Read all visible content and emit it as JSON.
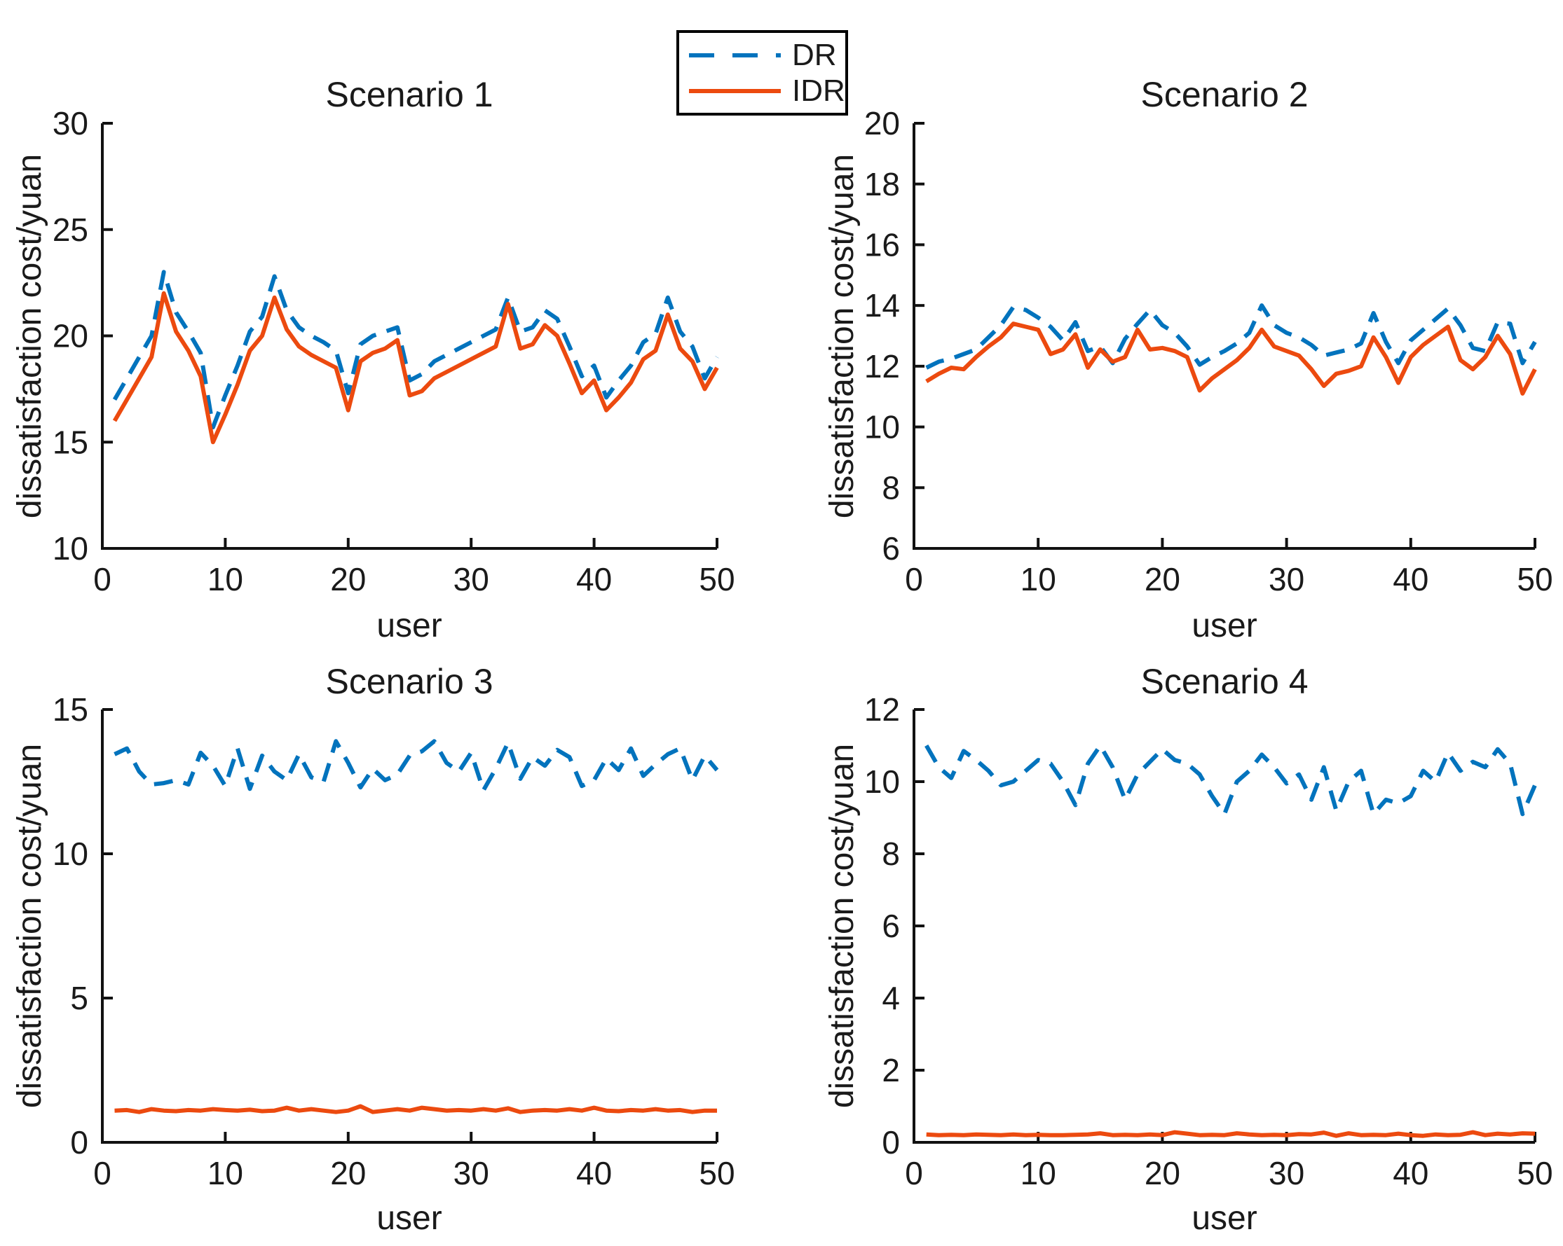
{
  "figure": {
    "background": "#ffffff",
    "axis_color": "#111111",
    "legend": {
      "items": [
        {
          "label": "DR",
          "color": "#0273BD",
          "style": "dashed"
        },
        {
          "label": "IDR",
          "color": "#EC4A0F",
          "style": "solid"
        }
      ]
    }
  },
  "chart_data": [
    {
      "type": "line",
      "title": "Scenario 1",
      "xlabel": "user",
      "ylabel": "dissatisfaction cost/yuan",
      "xlim": [
        0,
        50
      ],
      "ylim": [
        10,
        30
      ],
      "xticks": [
        0,
        10,
        20,
        30,
        40,
        50
      ],
      "yticks": [
        10,
        15,
        20,
        25,
        30
      ],
      "grid": false,
      "x_range": [
        1,
        50
      ],
      "series": [
        {
          "name": "DR",
          "style": "dashed",
          "color": "#0273BD",
          "values": [
            17.0,
            18.0,
            19.0,
            20.0,
            23.0,
            21.1,
            20.2,
            19.2,
            15.7,
            17.2,
            18.6,
            20.2,
            20.9,
            22.8,
            21.2,
            20.4,
            20.0,
            19.7,
            19.3,
            17.3,
            19.6,
            20.0,
            20.2,
            20.4,
            17.9,
            18.2,
            18.8,
            19.1,
            19.4,
            19.7,
            20.0,
            20.3,
            21.8,
            20.2,
            20.4,
            21.2,
            20.8,
            19.5,
            18.1,
            18.6,
            17.1,
            17.9,
            18.6,
            19.7,
            20.1,
            21.8,
            20.2,
            19.5,
            18.0,
            19.0
          ]
        },
        {
          "name": "IDR",
          "style": "solid",
          "color": "#EC4A0F",
          "values": [
            16.0,
            17.0,
            18.0,
            19.0,
            22.0,
            20.2,
            19.3,
            18.1,
            15.0,
            16.3,
            17.7,
            19.3,
            20.0,
            21.8,
            20.3,
            19.5,
            19.1,
            18.8,
            18.5,
            16.5,
            18.8,
            19.2,
            19.4,
            19.8,
            17.2,
            17.4,
            18.0,
            18.3,
            18.6,
            18.9,
            19.2,
            19.5,
            21.5,
            19.4,
            19.6,
            20.5,
            20.0,
            18.7,
            17.3,
            17.9,
            16.5,
            17.1,
            17.8,
            18.9,
            19.3,
            21.0,
            19.4,
            18.8,
            17.5,
            18.5
          ]
        }
      ]
    },
    {
      "type": "line",
      "title": "Scenario 2",
      "xlabel": "user",
      "ylabel": "dissatisfaction cost/yuan",
      "xlim": [
        0,
        50
      ],
      "ylim": [
        6,
        20
      ],
      "xticks": [
        0,
        10,
        20,
        30,
        40,
        50
      ],
      "yticks": [
        6,
        8,
        10,
        12,
        14,
        16,
        18,
        20
      ],
      "grid": false,
      "x_range": [
        1,
        50
      ],
      "series": [
        {
          "name": "DR",
          "style": "dashed",
          "color": "#0273BD",
          "values": [
            11.95,
            12.15,
            12.25,
            12.4,
            12.55,
            12.95,
            13.35,
            13.95,
            13.85,
            13.6,
            13.3,
            12.85,
            13.45,
            12.5,
            12.65,
            12.1,
            12.9,
            13.4,
            13.85,
            13.35,
            13.1,
            12.65,
            12.05,
            12.3,
            12.5,
            12.75,
            13.1,
            14.0,
            13.35,
            13.1,
            12.95,
            12.7,
            12.35,
            12.45,
            12.55,
            12.75,
            13.75,
            12.8,
            12.1,
            12.85,
            13.2,
            13.55,
            13.9,
            13.35,
            12.6,
            12.5,
            13.45,
            13.4,
            12.1,
            12.8
          ]
        },
        {
          "name": "IDR",
          "style": "solid",
          "color": "#EC4A0F",
          "values": [
            11.5,
            11.75,
            11.95,
            11.9,
            12.3,
            12.65,
            12.95,
            13.4,
            13.3,
            13.2,
            12.4,
            12.55,
            13.05,
            11.95,
            12.55,
            12.15,
            12.3,
            13.2,
            12.55,
            12.6,
            12.5,
            12.3,
            11.2,
            11.6,
            11.9,
            12.2,
            12.6,
            13.2,
            12.65,
            12.5,
            12.35,
            11.9,
            11.35,
            11.75,
            11.85,
            12.0,
            12.95,
            12.3,
            11.45,
            12.3,
            12.7,
            13.0,
            13.3,
            12.2,
            11.9,
            12.3,
            13.0,
            12.4,
            11.1,
            11.9
          ]
        }
      ]
    },
    {
      "type": "line",
      "title": "Scenario 3",
      "xlabel": "user",
      "ylabel": "dissatisfaction cost/yuan",
      "xlim": [
        0,
        50
      ],
      "ylim": [
        0,
        15
      ],
      "xticks": [
        0,
        10,
        20,
        30,
        40,
        50
      ],
      "yticks": [
        0,
        5,
        10,
        15
      ],
      "grid": false,
      "x_range": [
        1,
        50
      ],
      "series": [
        {
          "name": "DR",
          "style": "dashed",
          "color": "#0273BD",
          "values": [
            13.45,
            13.65,
            12.85,
            12.4,
            12.45,
            12.55,
            12.4,
            13.5,
            13.05,
            12.35,
            13.65,
            12.25,
            13.4,
            12.85,
            12.55,
            13.45,
            12.65,
            12.5,
            13.9,
            13.15,
            12.3,
            12.95,
            12.55,
            12.75,
            13.4,
            13.55,
            13.9,
            13.15,
            12.85,
            13.5,
            12.2,
            12.95,
            13.85,
            12.6,
            13.35,
            13.05,
            13.6,
            13.35,
            12.35,
            12.55,
            13.3,
            12.9,
            13.65,
            12.7,
            13.1,
            13.45,
            13.65,
            12.55,
            13.4,
            12.9
          ]
        },
        {
          "name": "IDR",
          "style": "solid",
          "color": "#EC4A0F",
          "values": [
            1.1,
            1.12,
            1.05,
            1.15,
            1.1,
            1.08,
            1.12,
            1.1,
            1.15,
            1.12,
            1.1,
            1.13,
            1.08,
            1.1,
            1.2,
            1.1,
            1.15,
            1.1,
            1.05,
            1.1,
            1.25,
            1.05,
            1.1,
            1.15,
            1.1,
            1.2,
            1.15,
            1.1,
            1.12,
            1.1,
            1.15,
            1.1,
            1.18,
            1.05,
            1.1,
            1.12,
            1.1,
            1.15,
            1.1,
            1.2,
            1.1,
            1.08,
            1.12,
            1.1,
            1.15,
            1.1,
            1.12,
            1.05,
            1.1,
            1.1
          ]
        }
      ]
    },
    {
      "type": "line",
      "title": "Scenario 4",
      "xlabel": "user",
      "ylabel": "dissatisfaction cost/yuan",
      "xlim": [
        0,
        50
      ],
      "ylim": [
        0,
        12
      ],
      "xticks": [
        0,
        10,
        20,
        30,
        40,
        50
      ],
      "yticks": [
        0,
        2,
        4,
        6,
        8,
        10,
        12
      ],
      "grid": false,
      "x_range": [
        1,
        50
      ],
      "series": [
        {
          "name": "DR",
          "style": "dashed",
          "color": "#0273BD",
          "values": [
            11.0,
            10.4,
            10.1,
            10.85,
            10.6,
            10.3,
            9.9,
            10.0,
            10.3,
            10.6,
            10.5,
            10.0,
            9.35,
            10.5,
            11.0,
            10.4,
            9.5,
            10.2,
            10.55,
            10.9,
            10.6,
            10.5,
            10.2,
            9.6,
            9.1,
            10.0,
            10.3,
            10.75,
            10.4,
            9.95,
            10.2,
            9.5,
            10.4,
            9.2,
            10.0,
            10.3,
            9.1,
            9.5,
            9.4,
            9.6,
            10.3,
            10.0,
            10.8,
            10.3,
            10.55,
            10.4,
            10.9,
            10.5,
            9.1,
            9.9
          ]
        },
        {
          "name": "IDR",
          "style": "solid",
          "color": "#EC4A0F",
          "values": [
            0.22,
            0.2,
            0.21,
            0.2,
            0.22,
            0.21,
            0.2,
            0.22,
            0.2,
            0.21,
            0.2,
            0.2,
            0.21,
            0.22,
            0.25,
            0.2,
            0.21,
            0.2,
            0.22,
            0.2,
            0.28,
            0.24,
            0.2,
            0.21,
            0.2,
            0.25,
            0.22,
            0.2,
            0.21,
            0.2,
            0.23,
            0.22,
            0.27,
            0.18,
            0.25,
            0.2,
            0.21,
            0.2,
            0.24,
            0.2,
            0.18,
            0.22,
            0.2,
            0.21,
            0.28,
            0.2,
            0.24,
            0.22,
            0.25,
            0.24
          ]
        }
      ]
    }
  ]
}
